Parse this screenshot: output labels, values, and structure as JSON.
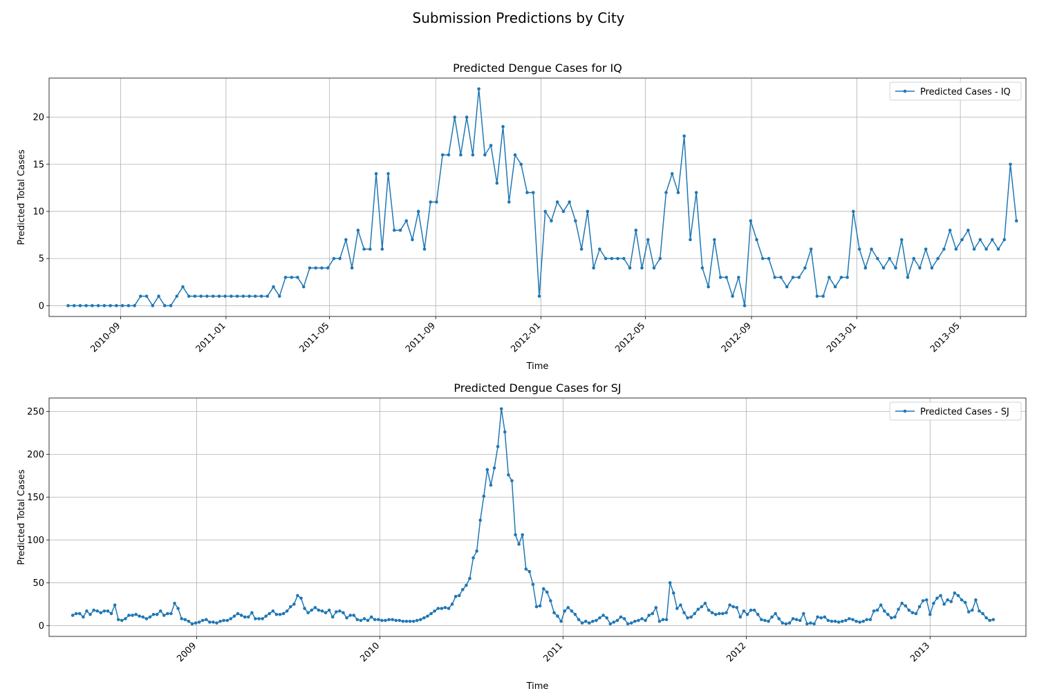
{
  "figure": {
    "title": "Submission Predictions by City"
  },
  "style": {
    "series_color": "#1f77b4",
    "grid_color": "#b0b0b0"
  },
  "chart_data": [
    {
      "type": "line",
      "title": "Predicted Dengue Cases for IQ",
      "xlabel": "Time",
      "ylabel": "Predicted Total Cases",
      "x_axis": "date",
      "xlim": [
        "2010-06-10",
        "2013-07-16"
      ],
      "ylim": [
        -1.15,
        24.15
      ],
      "x_ticks": [
        "2010-09",
        "2011-01",
        "2011-05",
        "2011-09",
        "2012-01",
        "2012-05",
        "2012-09",
        "2013-01",
        "2013-05"
      ],
      "y_ticks": [
        0,
        5,
        10,
        15,
        20
      ],
      "grid": true,
      "legend": "upper right",
      "series": [
        {
          "name": "Predicted Cases - IQ",
          "start": "2010-07-02",
          "interval_days": 7,
          "values": [
            0,
            0,
            0,
            0,
            0,
            0,
            0,
            0,
            0,
            0,
            0,
            0,
            1,
            1,
            0,
            1,
            0,
            0,
            1,
            2,
            1,
            1,
            1,
            1,
            1,
            1,
            1,
            1,
            1,
            1,
            1,
            1,
            1,
            1,
            2,
            1,
            3,
            3,
            3,
            2,
            4,
            4,
            4,
            4,
            5,
            5,
            7,
            4,
            8,
            6,
            6,
            14,
            6,
            14,
            8,
            8,
            9,
            7,
            10,
            6,
            11,
            11,
            16,
            16,
            20,
            16,
            20,
            16,
            23,
            16,
            17,
            13,
            19,
            11,
            16,
            15,
            12,
            12,
            1,
            10,
            9,
            11,
            10,
            11,
            9,
            6,
            10,
            4,
            6,
            5,
            5,
            5,
            5,
            4,
            8,
            4,
            7,
            4,
            5,
            12,
            14,
            12,
            18,
            7,
            12,
            4,
            2,
            7,
            3,
            3,
            1,
            3,
            0,
            9,
            7,
            5,
            5,
            3,
            3,
            2,
            3,
            3,
            4,
            6,
            1,
            1,
            3,
            2,
            3,
            3,
            10,
            6,
            4,
            6,
            5,
            4,
            5,
            4,
            7,
            3,
            5,
            4,
            6,
            4,
            5,
            6,
            8,
            6,
            7,
            8,
            6,
            7,
            6,
            7,
            6,
            7,
            15,
            9
          ]
        }
      ]
    },
    {
      "type": "line",
      "title": "Predicted Dengue Cases for SJ",
      "xlabel": "Time",
      "ylabel": "Predicted Total Cases",
      "x_axis": "date",
      "xlim": [
        "2008-03-13",
        "2013-07-11"
      ],
      "ylim": [
        -12.65,
        265.65
      ],
      "x_ticks": [
        "2009",
        "2010",
        "2011",
        "2012",
        "2013"
      ],
      "y_ticks": [
        0,
        50,
        100,
        150,
        200,
        250
      ],
      "grid": true,
      "legend": "upper right",
      "series": [
        {
          "name": "Predicted Cases - SJ",
          "start": "2008-04-29",
          "interval_days": 7,
          "values": [
            12,
            14,
            14,
            10,
            17,
            13,
            18,
            17,
            15,
            17,
            17,
            14,
            24,
            7,
            6,
            8,
            12,
            12,
            13,
            11,
            10,
            8,
            10,
            13,
            13,
            17,
            12,
            14,
            14,
            26,
            20,
            8,
            7,
            5,
            2,
            3,
            4,
            6,
            7,
            4,
            4,
            3,
            5,
            6,
            6,
            8,
            11,
            14,
            12,
            10,
            10,
            15,
            8,
            8,
            8,
            11,
            14,
            17,
            13,
            13,
            14,
            17,
            22,
            25,
            35,
            32,
            20,
            15,
            18,
            21,
            18,
            17,
            15,
            18,
            10,
            16,
            17,
            15,
            9,
            12,
            12,
            7,
            6,
            8,
            6,
            10,
            7,
            7,
            6,
            6,
            7,
            7,
            6,
            6,
            5,
            5,
            5,
            5,
            6,
            7,
            9,
            11,
            14,
            17,
            20,
            20,
            21,
            20,
            25,
            34,
            35,
            42,
            47,
            55,
            79,
            87,
            123,
            151,
            182,
            164,
            184,
            209,
            253,
            226,
            176,
            169,
            106,
            95,
            106,
            66,
            63,
            48,
            22,
            23,
            43,
            39,
            29,
            15,
            11,
            5,
            17,
            21,
            17,
            13,
            7,
            3,
            5,
            3,
            5,
            6,
            9,
            12,
            9,
            2,
            4,
            6,
            10,
            8,
            2,
            3,
            5,
            6,
            8,
            6,
            12,
            14,
            21,
            5,
            7,
            7,
            50,
            38,
            20,
            24,
            15,
            9,
            10,
            14,
            19,
            22,
            26,
            18,
            15,
            13,
            14,
            14,
            15,
            24,
            22,
            21,
            10,
            17,
            13,
            18,
            18,
            13,
            7,
            6,
            5,
            10,
            14,
            8,
            3,
            2,
            3,
            8,
            7,
            6,
            14,
            2,
            3,
            2,
            10,
            9,
            10,
            6,
            5,
            5,
            4,
            5,
            6,
            8,
            7,
            5,
            4,
            5,
            7,
            7,
            17,
            18,
            24,
            17,
            13,
            9,
            10,
            19,
            26,
            23,
            18,
            15,
            14,
            22,
            29,
            30,
            13,
            26,
            32,
            35,
            25,
            30,
            28,
            38,
            35,
            30,
            27,
            16,
            18,
            30,
            17,
            14,
            9,
            6,
            7
          ]
        }
      ]
    }
  ]
}
